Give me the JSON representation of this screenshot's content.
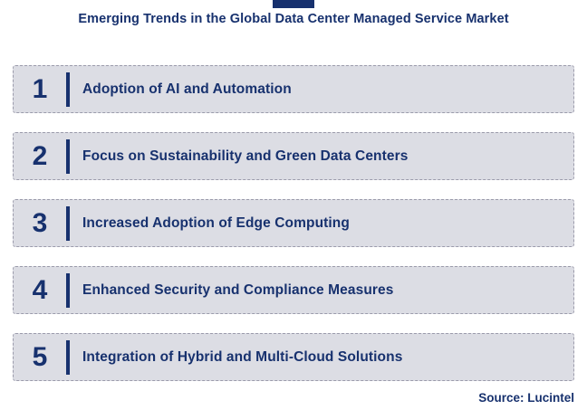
{
  "title": "Emerging Trends in the Global Data Center Managed Service Market",
  "trends": [
    {
      "number": "1",
      "label": "Adoption of AI and Automation"
    },
    {
      "number": "2",
      "label": "Focus on Sustainability and Green Data Centers"
    },
    {
      "number": "3",
      "label": "Increased Adoption of Edge Computing"
    },
    {
      "number": "4",
      "label": "Enhanced Security and Compliance Measures"
    },
    {
      "number": "5",
      "label": "Integration of Hybrid and Multi-Cloud Solutions"
    }
  ],
  "source": "Source: Lucintel",
  "colors": {
    "navy": "#17316e",
    "box_bg": "#dcdde4",
    "box_border": "#9b9bab"
  }
}
